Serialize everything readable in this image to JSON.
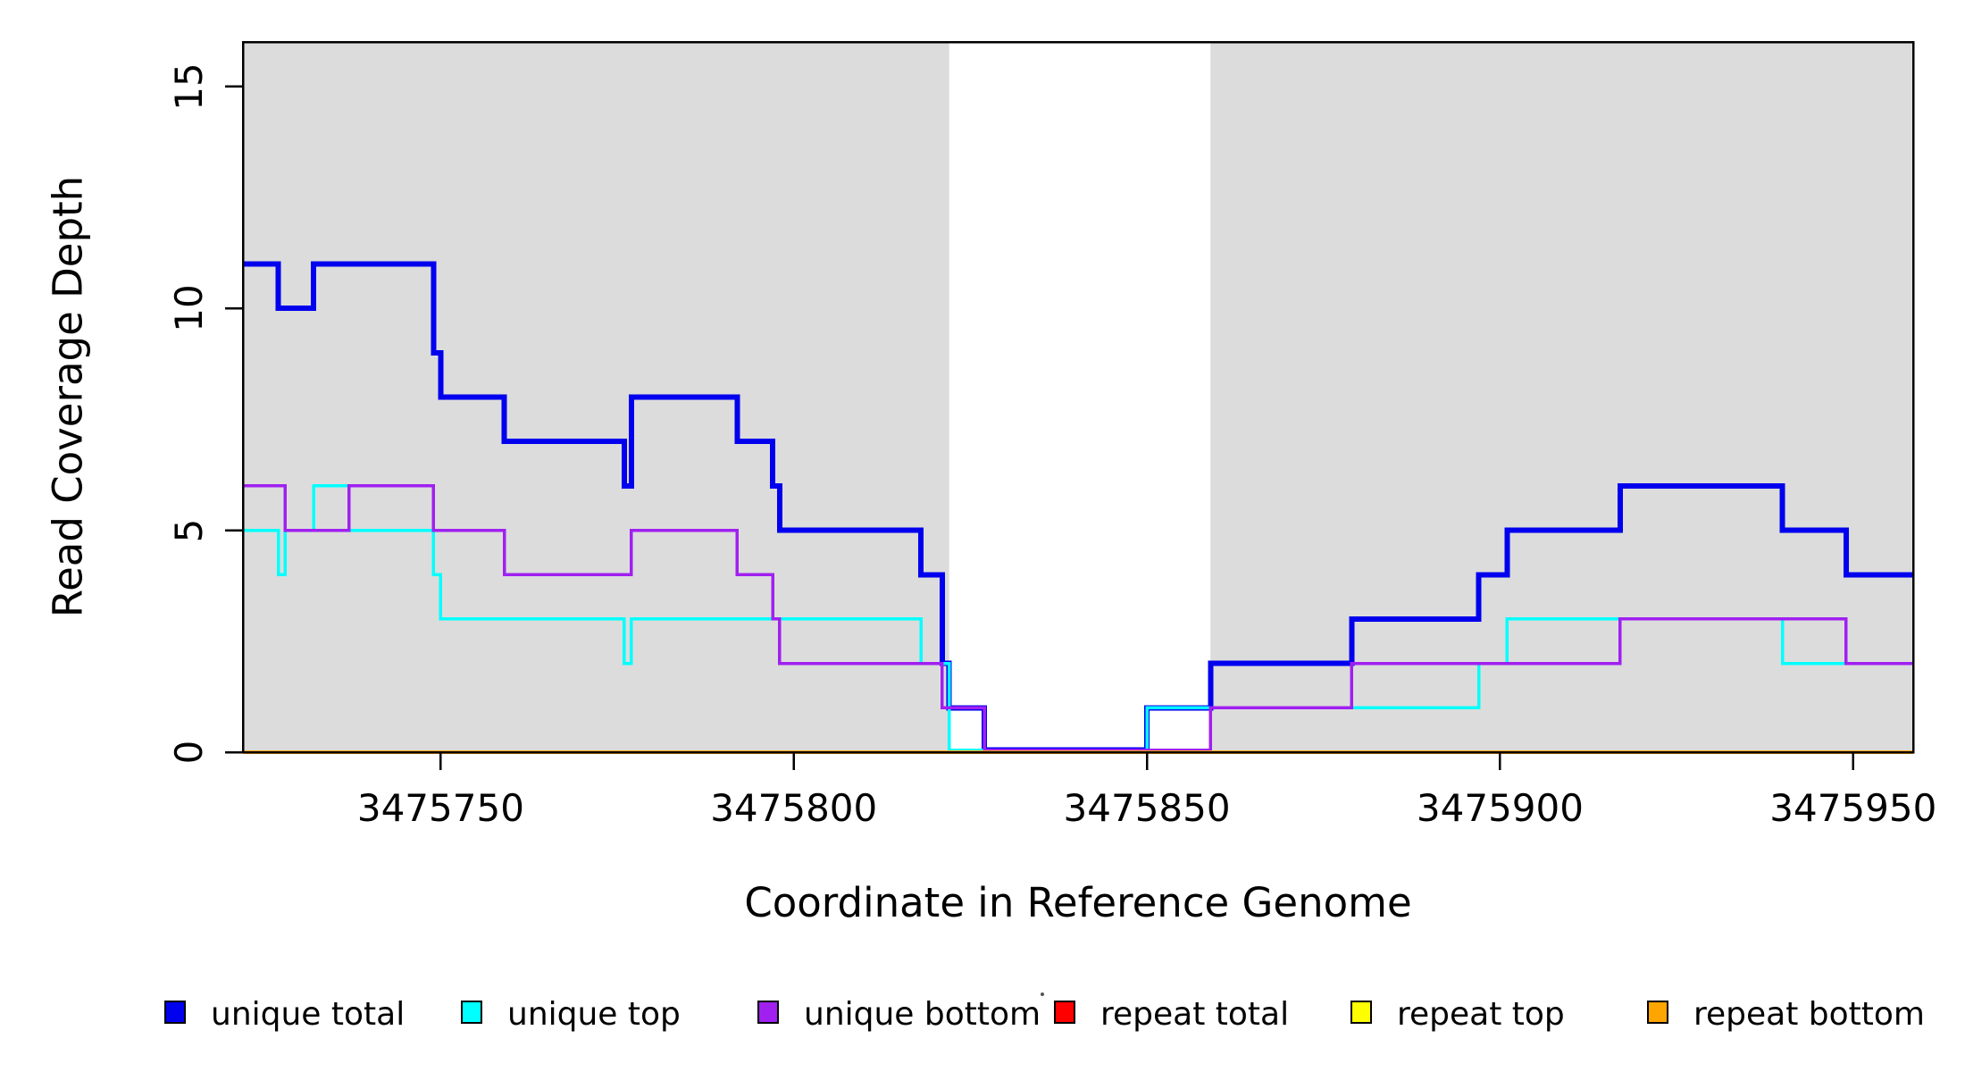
{
  "figure": {
    "x_title": "Coordinate in Reference Genome",
    "y_title": "Read Coverage Depth"
  },
  "legend": {
    "items": [
      {
        "label": "unique total",
        "color": "#0000EE"
      },
      {
        "label": "unique top",
        "color": "#00FFFF"
      },
      {
        "label": "unique bottom",
        "color": "#A020F0"
      },
      {
        "label": "repeat total",
        "color": "#FF0000"
      },
      {
        "label": "repeat top",
        "color": "#FFFF00"
      },
      {
        "label": "repeat bottom",
        "color": "#FFA500"
      }
    ]
  },
  "chart_data": {
    "type": "line",
    "step": "after",
    "title": "",
    "xlabel": "Coordinate in Reference Genome",
    "ylabel": "Read Coverage Depth",
    "xlim": [
      3475722,
      3475958.5
    ],
    "ylim": [
      0,
      16
    ],
    "x_ticks": [
      3475750,
      3475800,
      3475850,
      3475900,
      3475950
    ],
    "y_ticks": [
      0,
      5,
      10,
      15
    ],
    "grid": false,
    "legend_position": "bottom",
    "background_color": "#FFFFFF",
    "shaded_regions": [
      {
        "start": 3475722,
        "end": 3475822,
        "color": "#DCDCDC"
      },
      {
        "start": 3475859,
        "end": 3475958.5,
        "color": "#DCDCDC"
      }
    ],
    "series": [
      {
        "name": "unique total",
        "color": "#0000EE",
        "width": 6,
        "points": [
          [
            3475722,
            11
          ],
          [
            3475727,
            10
          ],
          [
            3475732,
            11
          ],
          [
            3475749,
            9
          ],
          [
            3475750,
            8
          ],
          [
            3475759,
            7
          ],
          [
            3475776,
            6
          ],
          [
            3475777,
            8
          ],
          [
            3475792,
            7
          ],
          [
            3475797,
            6
          ],
          [
            3475798,
            5
          ],
          [
            3475818,
            4
          ],
          [
            3475821,
            2
          ],
          [
            3475822,
            1
          ],
          [
            3475827,
            0
          ],
          [
            3475850,
            1
          ],
          [
            3475859,
            2
          ],
          [
            3475879,
            3
          ],
          [
            3475897,
            4
          ],
          [
            3475901,
            5
          ],
          [
            3475917,
            6
          ],
          [
            3475940,
            5
          ],
          [
            3475949,
            4
          ]
        ]
      },
      {
        "name": "unique top",
        "color": "#00FFFF",
        "width": 3.5,
        "points": [
          [
            3475722,
            5
          ],
          [
            3475727,
            4
          ],
          [
            3475728,
            5
          ],
          [
            3475732,
            6
          ],
          [
            3475737,
            5
          ],
          [
            3475749,
            4
          ],
          [
            3475750,
            3
          ],
          [
            3475776,
            2
          ],
          [
            3475777,
            3
          ],
          [
            3475818,
            2
          ],
          [
            3475822,
            0
          ],
          [
            3475850,
            1
          ],
          [
            3475897,
            2
          ],
          [
            3475901,
            3
          ],
          [
            3475940,
            2
          ]
        ]
      },
      {
        "name": "unique bottom",
        "color": "#A020F0",
        "width": 3.5,
        "points": [
          [
            3475722,
            6
          ],
          [
            3475728,
            5
          ],
          [
            3475737,
            6
          ],
          [
            3475749,
            5
          ],
          [
            3475759,
            4
          ],
          [
            3475777,
            5
          ],
          [
            3475792,
            4
          ],
          [
            3475797,
            3
          ],
          [
            3475798,
            2
          ],
          [
            3475821,
            1
          ],
          [
            3475827,
            0
          ],
          [
            3475859,
            1
          ],
          [
            3475879,
            2
          ],
          [
            3475917,
            3
          ],
          [
            3475949,
            2
          ]
        ]
      },
      {
        "name": "repeat total",
        "color": "#FF0000",
        "width": 3,
        "points": [
          [
            3475722,
            0
          ]
        ]
      },
      {
        "name": "repeat top",
        "color": "#FFFF00",
        "width": 3,
        "points": [
          [
            3475722,
            0
          ]
        ]
      },
      {
        "name": "repeat bottom",
        "color": "#FFA500",
        "width": 4,
        "points": [
          [
            3475722,
            0
          ]
        ]
      }
    ]
  }
}
